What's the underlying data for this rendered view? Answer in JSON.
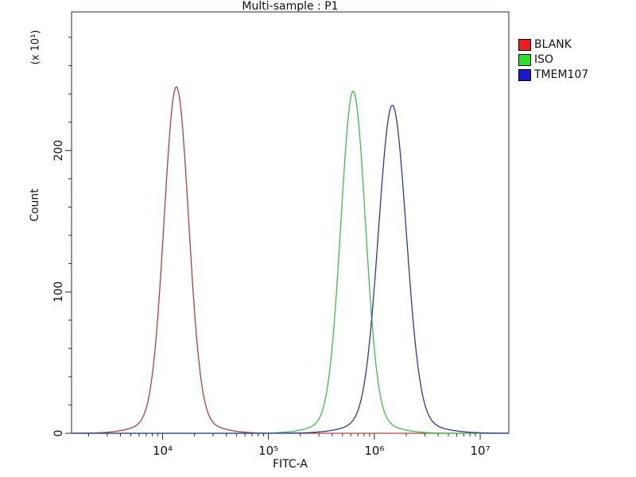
{
  "chart_data": {
    "type": "line",
    "title": "Multi-sample : P1",
    "xlabel": "FITC-A",
    "ylabel": "Count",
    "y_scale_note": "(x 10¹)",
    "x_axis": {
      "scale": "log10",
      "min_log": 3.14,
      "max_log": 7.27,
      "major_logs": [
        4,
        5,
        6,
        7
      ],
      "tick_labels": [
        "10⁴",
        "10⁵",
        "10⁶",
        "10⁷"
      ]
    },
    "y_axis": {
      "min": 0,
      "max": 298,
      "ticks": [
        0,
        100,
        200
      ],
      "tick_labels": [
        "0",
        "100",
        "200"
      ],
      "minor_step": 20
    },
    "grid": false,
    "legend_position": "outside-top-right",
    "series": [
      {
        "name": "BLANK",
        "curve_color": "#b04040",
        "legend_color": "#ee1c1c",
        "peak_fitc": 13500,
        "peak_log10": 4.13,
        "sigma_log10": 0.115,
        "peak_count": 245
      },
      {
        "name": "ISO",
        "curve_color": "#3dbb4d",
        "legend_color": "#2ae02a",
        "peak_fitc": 630000,
        "peak_log10": 5.8,
        "sigma_log10": 0.115,
        "peak_count": 242
      },
      {
        "name": "TMEM107",
        "curve_color": "#2b3a9b",
        "legend_color": "#1818cc",
        "peak_fitc": 1480000,
        "peak_log10": 6.17,
        "sigma_log10": 0.13,
        "peak_count": 232
      }
    ]
  }
}
